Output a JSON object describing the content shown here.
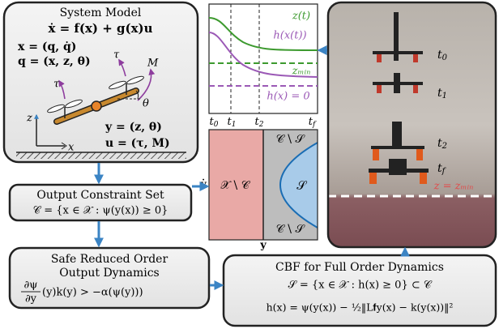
{
  "system_model": {
    "title": "System Model",
    "dynamics": "ẋ = f(x) + g(x)u",
    "state": "x = (q, q̇)",
    "config": "q = (x, z, θ)",
    "output": "y = (z, θ)",
    "input": "u = (τ, M)",
    "labels": {
      "tau_left": "τ",
      "tau_right": "τ",
      "moment": "M",
      "theta": "θ",
      "axis_z": "z",
      "axis_x": "x"
    }
  },
  "output_constraint": {
    "title": "Output Constraint Set",
    "set": "𝒞 = {x ∈ 𝒳 : ψ(y(x)) ≥ 0}"
  },
  "reduced_order": {
    "title_lines": [
      "Safe Reduced Order",
      "Output Dynamics"
    ],
    "numerator": "∂ψ",
    "denominator": "∂y",
    "condition": "(y)k(y) > −α(ψ(y)))"
  },
  "full_order": {
    "title": "CBF for Full Order Dynamics",
    "safe_set": "𝒮 = {x ∈ 𝒳 : h(x) ≥ 0} ⊂ 𝒞",
    "cbf": "h(x) = ψ(y(x)) − ½‖L𝐟y(x) − k(y(x))‖²"
  },
  "plot": {
    "z_label": "z(t)",
    "h_label": "h(x(t))",
    "z_min": "zₘᵢₙ",
    "h_zero": "h(x) = 0",
    "time_ticks": [
      {
        "base": "t",
        "sub": "0"
      },
      {
        "base": "t",
        "sub": "1"
      },
      {
        "base": "t",
        "sub": "2"
      },
      {
        "base": "t",
        "sub": "f"
      }
    ]
  },
  "set_diagram": {
    "outside": "𝒳 \\ 𝒞",
    "safe": "𝒮",
    "boundary_top": "𝒞 \\ 𝒮",
    "boundary_bottom": "𝒞 \\ 𝒮",
    "x_axis": "y",
    "y_axis": "ẏ"
  },
  "photo": {
    "time_labels": [
      {
        "base": "t",
        "sub": "0"
      },
      {
        "base": "t",
        "sub": "1"
      },
      {
        "base": "t",
        "sub": "2"
      },
      {
        "base": "t",
        "sub": "f"
      }
    ],
    "ground": "z = zₘᵢₙ"
  }
}
